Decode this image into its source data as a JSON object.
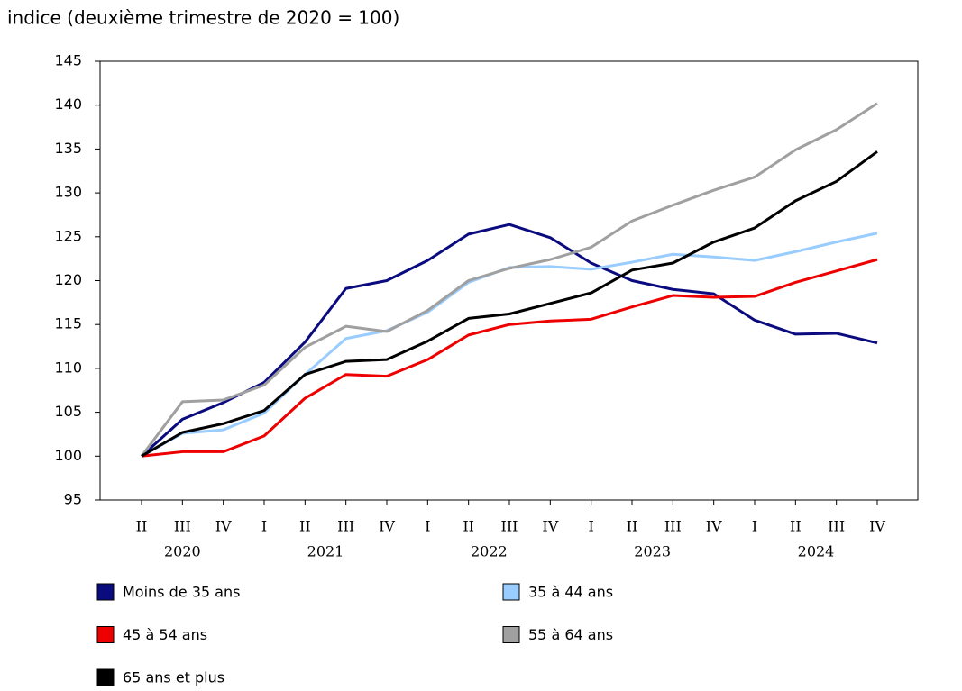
{
  "chart_data": {
    "type": "line",
    "title": "indice (deuxième trimestre de 2020 = 100)",
    "categories": [
      "II",
      "III",
      "IV",
      "I",
      "II",
      "III",
      "IV",
      "I",
      "II",
      "III",
      "IV",
      "I",
      "II",
      "III",
      "IV",
      "I",
      "II",
      "III",
      "IV"
    ],
    "years": [
      "2020",
      null,
      null,
      "2021",
      null,
      null,
      null,
      "2022",
      null,
      null,
      null,
      "2023",
      null,
      null,
      null,
      "2024",
      null,
      null,
      null
    ],
    "ylim": [
      95,
      145
    ],
    "yticks": [
      95,
      100,
      105,
      110,
      115,
      120,
      125,
      130,
      135,
      140,
      145
    ],
    "series": [
      {
        "name": "Moins de 35 ans",
        "color": "#0b0b80",
        "values": [
          100,
          104.2,
          106.1,
          108.4,
          113,
          119.1,
          120,
          122.3,
          125.3,
          126.4,
          124.9,
          122,
          120,
          119,
          118.5,
          115.5,
          113.9,
          114,
          112.9
        ]
      },
      {
        "name": "35 à 44 ans",
        "color": "#99ccff",
        "values": [
          100,
          102.6,
          103,
          104.9,
          109.3,
          113.4,
          114.3,
          116.4,
          119.8,
          121.5,
          121.6,
          121.3,
          122.1,
          123,
          122.7,
          122.3,
          123.3,
          124.4,
          125.4
        ]
      },
      {
        "name": "45 à 54 ans",
        "color": "#ee0000",
        "values": [
          100,
          100.5,
          100.5,
          102.3,
          106.6,
          109.3,
          109.1,
          111,
          113.8,
          115,
          115.4,
          115.6,
          117,
          118.3,
          118.1,
          118.2,
          119.8,
          121.1,
          122.4
        ]
      },
      {
        "name": "55 à 64 ans",
        "color": "#a0a0a0",
        "values": [
          100,
          106.2,
          106.4,
          108.1,
          112.4,
          114.8,
          114.2,
          116.6,
          120,
          121.4,
          122.4,
          123.8,
          126.8,
          128.6,
          130.3,
          131.8,
          134.9,
          137.2,
          140.2
        ]
      },
      {
        "name": "65 ans et plus",
        "color": "#000000",
        "values": [
          100,
          102.7,
          103.7,
          105.2,
          109.3,
          110.8,
          111,
          113.1,
          115.7,
          116.2,
          117.4,
          118.6,
          121.2,
          122,
          124.4,
          126,
          129.1,
          131.3,
          134.7
        ]
      }
    ]
  }
}
